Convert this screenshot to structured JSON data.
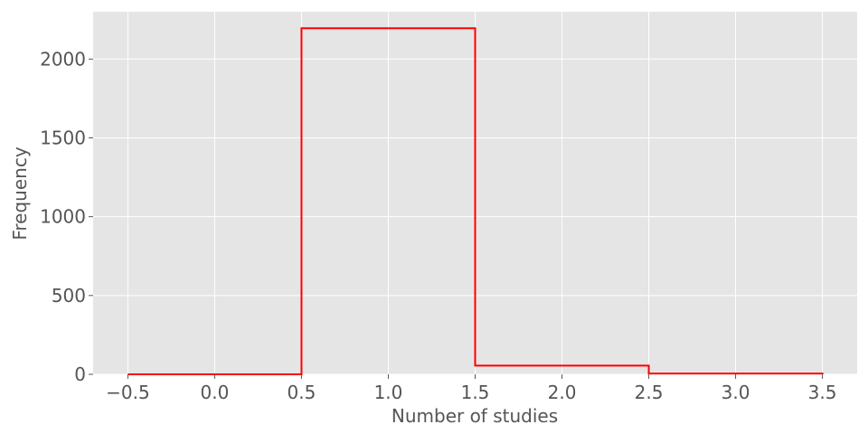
{
  "chart_data": {
    "type": "histogram-step",
    "title": "",
    "xlabel": "Number of studies",
    "ylabel": "Frequency",
    "xlim": [
      -0.7,
      3.7
    ],
    "ylim": [
      0,
      2300
    ],
    "xticks": [
      -0.5,
      0.0,
      0.5,
      1.0,
      1.5,
      2.0,
      2.5,
      3.0,
      3.5
    ],
    "xtick_labels": [
      "−0.5",
      "0.0",
      "0.5",
      "1.0",
      "1.5",
      "2.0",
      "2.5",
      "3.0",
      "3.5"
    ],
    "yticks": [
      0,
      500,
      1000,
      1500,
      2000
    ],
    "ytick_labels": [
      "0",
      "500",
      "1000",
      "1500",
      "2000"
    ],
    "bins": [
      -0.5,
      0.5,
      1.5,
      2.5,
      3.5
    ],
    "counts": [
      0,
      2195,
      55,
      5
    ],
    "grid": true,
    "style": "ggplot",
    "line_color": "#ff0000",
    "background_color": "#e5e5e5",
    "grid_color": "#ffffff"
  }
}
